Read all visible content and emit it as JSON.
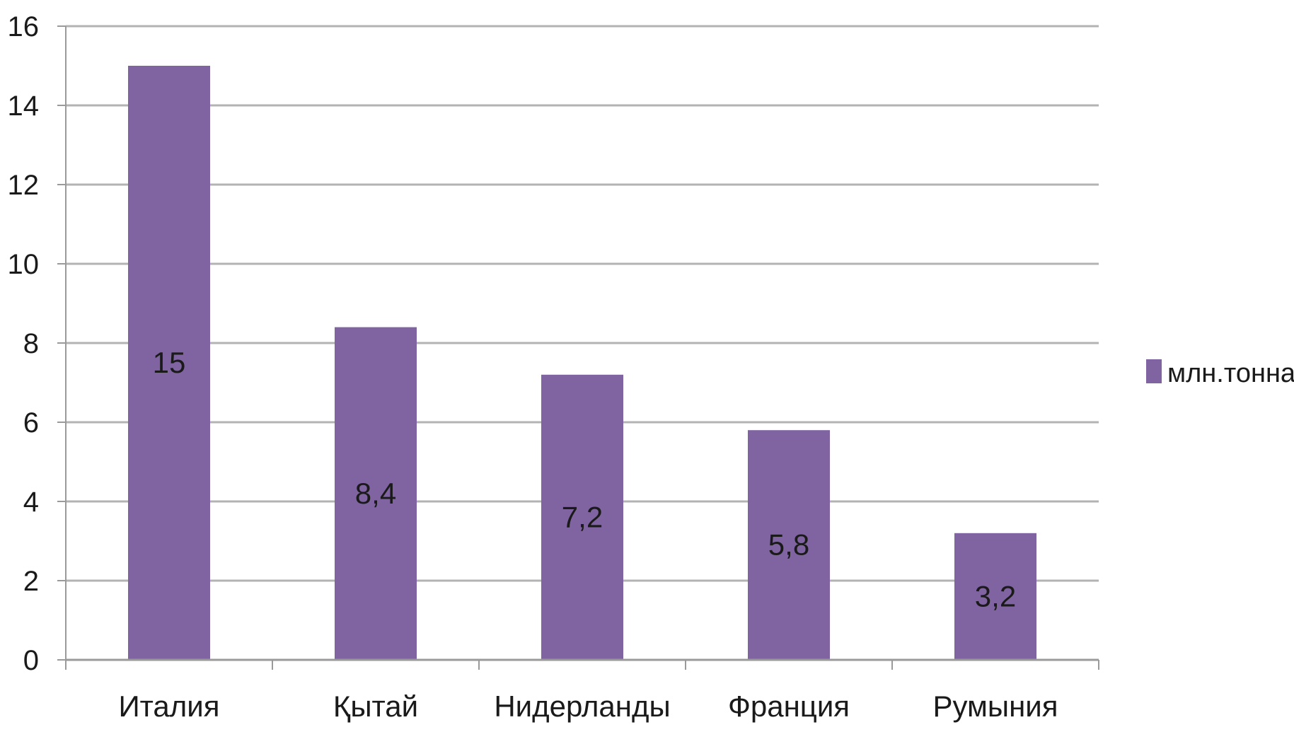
{
  "chart_data": {
    "type": "bar",
    "categories": [
      "Италия",
      "Қытай",
      "Нидерланды",
      "Франция",
      "Румыния"
    ],
    "series": [
      {
        "name": "млн.тонна",
        "values": [
          15,
          8.4,
          7.2,
          5.8,
          3.2
        ],
        "data_labels": [
          "15",
          "8,4",
          "7,2",
          "5,8",
          "3,2"
        ],
        "color": "#8064a2"
      }
    ],
    "ylim": [
      0,
      16
    ],
    "yticks": [
      0,
      2,
      4,
      6,
      8,
      10,
      12,
      14,
      16
    ],
    "ytick_labels": [
      "0",
      "2",
      "4",
      "6",
      "8",
      "10",
      "12",
      "14",
      "16"
    ],
    "grid": true,
    "legend_position": "right",
    "colors": {
      "bar": "#8064a2",
      "grid": "#b3b3b3",
      "axis": "#9a9a9a",
      "text": "#1a1a1a"
    }
  }
}
